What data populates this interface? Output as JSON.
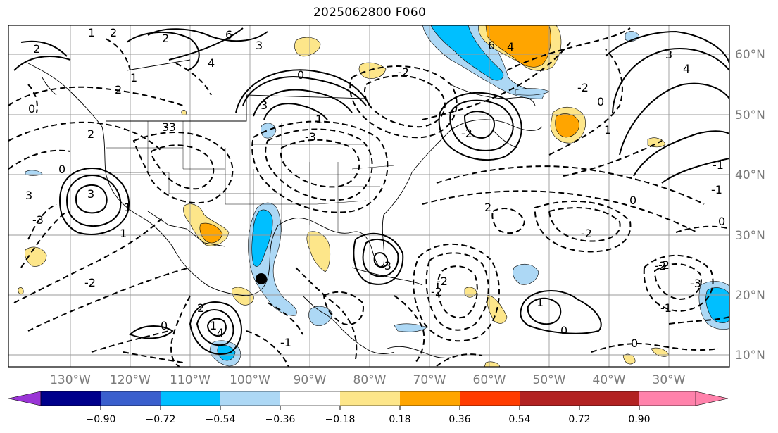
{
  "title": "2025062800 F060",
  "longitude_labels": [
    "130°W",
    "120°W",
    "110°W",
    "100°W",
    "90°W",
    "80°W",
    "70°W",
    "60°W",
    "50°W",
    "40°W",
    "30°W"
  ],
  "latitude_labels": [
    "60°N",
    "50°N",
    "40°N",
    "30°N",
    "20°N",
    "10°N"
  ],
  "colorbar": {
    "colors": [
      "#9a35d6",
      "#00008b",
      "#3a5fcd",
      "#00bfff",
      "#add8f5",
      "#ffffff",
      "#fde68a",
      "#ffa500",
      "#ff3c00",
      "#b22222",
      "#ff82ab"
    ],
    "tick_labels": [
      "−0.90",
      "−0.72",
      "−0.54",
      "−0.36",
      "−0.18",
      "0.18",
      "0.36",
      "0.54",
      "0.72",
      "0.90"
    ]
  },
  "contour_labels": [
    {
      "text": "1"
    },
    {
      "text": "2"
    },
    {
      "text": "6"
    },
    {
      "text": "4"
    },
    {
      "text": "3"
    },
    {
      "text": "-2"
    },
    {
      "text": "2"
    },
    {
      "text": "0"
    },
    {
      "text": "2"
    },
    {
      "text": "1"
    },
    {
      "text": "2"
    },
    {
      "text": "3"
    },
    {
      "text": "3"
    },
    {
      "text": "1"
    },
    {
      "text": "0"
    },
    {
      "text": "3"
    },
    {
      "text": "-2"
    },
    {
      "text": "1"
    },
    {
      "text": "0"
    },
    {
      "text": "2"
    },
    {
      "text": "1"
    },
    {
      "text": "4"
    },
    {
      "text": "-3"
    },
    {
      "text": "6"
    },
    {
      "text": "4"
    },
    {
      "text": "3"
    },
    {
      "text": "4"
    },
    {
      "text": "3"
    },
    {
      "text": "0"
    },
    {
      "text": "1"
    },
    {
      "text": "-2"
    },
    {
      "text": "0"
    },
    {
      "text": "0"
    },
    {
      "text": "-2"
    },
    {
      "text": "-3"
    },
    {
      "text": "-2"
    },
    {
      "text": "-1"
    },
    {
      "text": "-3"
    },
    {
      "text": "2"
    },
    {
      "text": "1"
    },
    {
      "text": "0"
    },
    {
      "text": "2"
    },
    {
      "text": "-1"
    },
    {
      "text": "-2"
    },
    {
      "text": "-2"
    },
    {
      "text": "-3"
    },
    {
      "text": "-2"
    },
    {
      "text": "-1"
    },
    {
      "text": "1"
    },
    {
      "text": "0"
    },
    {
      "text": "-2"
    },
    {
      "text": "-3"
    },
    {
      "text": "0"
    },
    {
      "text": "-1"
    }
  ]
}
